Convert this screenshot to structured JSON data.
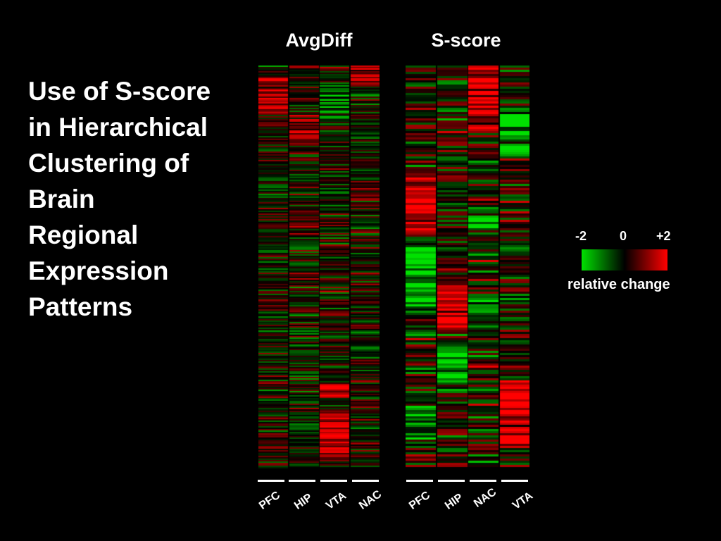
{
  "slide": {
    "title": "Use of S-score in Hierarchical Clustering of Brain Regional Expression Patterns"
  },
  "colors": {
    "background": "#000000",
    "text": "#ffffff",
    "low": "#00e000",
    "mid": "#000000",
    "high": "#ff0000"
  },
  "chart_data": [
    {
      "type": "heatmap",
      "title": "AvgDiff",
      "columns": [
        "PFC",
        "HIP",
        "VTA",
        "NAC"
      ],
      "color_scale": {
        "min": -2,
        "mid": 0,
        "max": 2
      },
      "blocks": [
        {
          "column": "PFC",
          "row_range": [
            0.03,
            0.12
          ],
          "value": 1.1
        },
        {
          "column": "VTA",
          "row_range": [
            0.04,
            0.13
          ],
          "value": -1.0
        },
        {
          "column": "NAC",
          "row_range": [
            0.0,
            0.05
          ],
          "value": 1.4
        },
        {
          "column": "HIP",
          "row_range": [
            0.12,
            0.19
          ],
          "value": 0.9
        },
        {
          "column": "VTA",
          "row_range": [
            0.86,
            0.98
          ],
          "value": 1.5
        },
        {
          "column": "VTA",
          "row_range": [
            0.79,
            0.82
          ],
          "value": 1.2
        }
      ]
    },
    {
      "type": "heatmap",
      "title": "S-score",
      "columns": [
        "PFC",
        "HIP",
        "NAC",
        "VTA"
      ],
      "color_scale": {
        "min": -2,
        "mid": 0,
        "max": 2
      },
      "blocks": [
        {
          "column": "NAC",
          "row_range": [
            0.0,
            0.12
          ],
          "value": 1.8
        },
        {
          "column": "NAC",
          "row_range": [
            0.12,
            0.16
          ],
          "value": 1.0
        },
        {
          "column": "VTA",
          "row_range": [
            0.12,
            0.22
          ],
          "value": -1.6
        },
        {
          "column": "PFC",
          "row_range": [
            0.26,
            0.42
          ],
          "value": 1.8
        },
        {
          "column": "NAC",
          "row_range": [
            0.35,
            0.41
          ],
          "value": -1.2
        },
        {
          "column": "PFC",
          "row_range": [
            0.45,
            0.6
          ],
          "value": -1.6
        },
        {
          "column": "HIP",
          "row_range": [
            0.55,
            0.65
          ],
          "value": 1.7
        },
        {
          "column": "NAC",
          "row_range": [
            0.57,
            0.64
          ],
          "value": -1.0
        },
        {
          "column": "HIP",
          "row_range": [
            0.7,
            0.78
          ],
          "value": -1.7
        },
        {
          "column": "VTA",
          "row_range": [
            0.78,
            0.95
          ],
          "value": 1.8
        },
        {
          "column": "PFC",
          "row_range": [
            0.85,
            0.93
          ],
          "value": -1.3
        }
      ]
    }
  ],
  "legend": {
    "ticks": [
      "-2",
      "0",
      "+2"
    ],
    "caption": "relative change"
  }
}
